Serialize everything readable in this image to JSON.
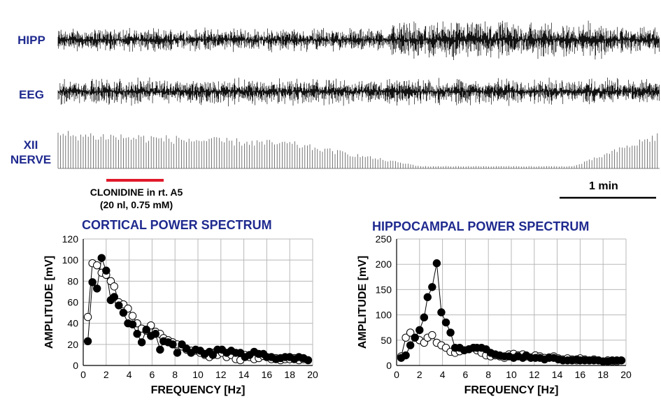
{
  "traces": {
    "hipp_label": "HIPP",
    "eeg_label": "EEG",
    "xii_label_line1": "XII",
    "xii_label_line2": "NERVE"
  },
  "drug": {
    "line1": "CLONIDINE in rt. A5",
    "line2": "(20 nl, 0.75 mM)",
    "bar_color": "#e0192b"
  },
  "scale_bar_label": "1 min",
  "colors": {
    "title": "#1f2a8f"
  },
  "chart_data": [
    {
      "type": "scatter",
      "title": "CORTICAL POWER SPECTRUM",
      "xlabel": "FREQUENCY [Hz]",
      "ylabel": "AMPLITUDE [mV]",
      "xlim": [
        0,
        20
      ],
      "ylim": [
        0,
        120
      ],
      "xticks": [
        "0",
        "2",
        "4",
        "6",
        "8",
        "10",
        "12",
        "14",
        "16",
        "18",
        "20"
      ],
      "yticks": [
        "0",
        "20",
        "40",
        "60",
        "80",
        "100",
        "120"
      ],
      "grid": true,
      "series": [
        {
          "marker": "open",
          "x": [
            0.4,
            0.8,
            1.2,
            1.6,
            2.0,
            2.4,
            2.7,
            3.1,
            3.5,
            3.9,
            4.3,
            4.7,
            5.1,
            5.5,
            5.9,
            6.3,
            6.7,
            7.0,
            7.4,
            7.8,
            8.2,
            8.6,
            9.0,
            9.4,
            9.8,
            10.2,
            10.6,
            11.0,
            11.3,
            11.7,
            12.1,
            12.5,
            12.9,
            13.3,
            13.7,
            14.1,
            14.5,
            14.9,
            15.3,
            15.7,
            16.0,
            16.4,
            16.8,
            17.2,
            17.6,
            18.0,
            18.4,
            18.8,
            19.2,
            19.6
          ],
          "y": [
            46,
            97,
            95,
            88,
            86,
            80,
            75,
            60,
            58,
            54,
            47,
            40,
            35,
            33,
            38,
            32,
            30,
            26,
            24,
            22,
            20,
            18,
            15,
            14,
            14,
            12,
            10,
            8,
            12,
            10,
            12,
            8,
            10,
            6,
            5,
            10,
            8,
            6,
            7,
            9,
            8,
            6,
            7,
            5,
            6,
            6,
            7,
            5,
            6,
            5
          ]
        },
        {
          "marker": "filled",
          "x": [
            0.4,
            0.8,
            1.2,
            1.6,
            2.0,
            2.4,
            2.7,
            3.1,
            3.5,
            3.9,
            4.3,
            4.7,
            5.1,
            5.5,
            5.9,
            6.3,
            6.7,
            7.0,
            7.4,
            7.8,
            8.2,
            8.6,
            9.0,
            9.4,
            9.8,
            10.2,
            10.6,
            11.0,
            11.3,
            11.7,
            12.1,
            12.5,
            12.9,
            13.3,
            13.7,
            14.1,
            14.5,
            14.9,
            15.3,
            15.7,
            16.0,
            16.4,
            16.8,
            17.2,
            17.6,
            18.0,
            18.4,
            18.8,
            19.2,
            19.6
          ],
          "y": [
            23,
            79,
            73,
            102,
            90,
            62,
            65,
            57,
            50,
            40,
            39,
            30,
            22,
            34,
            28,
            30,
            15,
            23,
            22,
            20,
            12,
            20,
            16,
            12,
            15,
            14,
            11,
            13,
            10,
            15,
            15,
            12,
            14,
            12,
            12,
            8,
            10,
            13,
            11,
            11,
            8,
            8,
            6,
            7,
            8,
            8,
            6,
            8,
            7,
            5
          ]
        }
      ]
    },
    {
      "type": "scatter",
      "title": "HIPPOCAMPAL POWER SPECTRUM",
      "xlabel": "FREQUENCY [Hz]",
      "ylabel": "AMPLITUDE [mV]",
      "xlim": [
        0,
        20
      ],
      "ylim": [
        0,
        250
      ],
      "xticks": [
        "0",
        "2",
        "4",
        "6",
        "8",
        "10",
        "12",
        "14",
        "16",
        "18",
        "20"
      ],
      "yticks": [
        "0",
        "50",
        "100",
        "150",
        "200",
        "250"
      ],
      "grid": true,
      "series": [
        {
          "marker": "open",
          "x": [
            0.4,
            0.8,
            1.2,
            1.6,
            2.0,
            2.4,
            2.7,
            3.1,
            3.5,
            3.9,
            4.3,
            4.7,
            5.1,
            5.5,
            5.9,
            6.3,
            6.7,
            7.0,
            7.4,
            7.8,
            8.2,
            8.6,
            9.0,
            9.4,
            9.8,
            10.2,
            10.6,
            11.0,
            11.3,
            11.7,
            12.1,
            12.5,
            12.9,
            13.3,
            13.7,
            14.1,
            14.5,
            14.9,
            15.3,
            15.7,
            16.0,
            16.4,
            16.8,
            17.2,
            17.6,
            18.0,
            18.4,
            18.8,
            19.2,
            19.6
          ],
          "y": [
            18,
            55,
            65,
            55,
            50,
            45,
            55,
            60,
            45,
            40,
            35,
            27,
            25,
            28,
            30,
            32,
            35,
            30,
            25,
            20,
            18,
            20,
            18,
            15,
            22,
            23,
            20,
            22,
            18,
            16,
            20,
            18,
            15,
            16,
            18,
            14,
            12,
            14,
            12,
            10,
            14,
            12,
            10,
            12,
            10,
            8,
            10,
            8,
            8,
            10
          ]
        },
        {
          "marker": "filled",
          "x": [
            0.4,
            0.8,
            1.2,
            1.6,
            2.0,
            2.4,
            2.7,
            3.1,
            3.5,
            3.9,
            4.3,
            4.7,
            5.1,
            5.5,
            5.9,
            6.3,
            6.7,
            7.0,
            7.4,
            7.8,
            8.2,
            8.6,
            9.0,
            9.4,
            9.8,
            10.2,
            10.6,
            11.0,
            11.3,
            11.7,
            12.1,
            12.5,
            12.9,
            13.3,
            13.7,
            14.1,
            14.5,
            14.9,
            15.3,
            15.7,
            16.0,
            16.4,
            16.8,
            17.2,
            17.6,
            18.0,
            18.4,
            18.8,
            19.2,
            19.6
          ],
          "y": [
            15,
            20,
            40,
            55,
            70,
            95,
            135,
            155,
            202,
            105,
            85,
            65,
            35,
            35,
            30,
            32,
            35,
            35,
            35,
            32,
            25,
            22,
            20,
            18,
            18,
            15,
            18,
            15,
            20,
            15,
            15,
            15,
            12,
            15,
            15,
            12,
            10,
            10,
            10,
            12,
            10,
            10,
            10,
            10,
            10,
            8,
            8,
            10,
            10,
            10
          ]
        }
      ]
    }
  ]
}
